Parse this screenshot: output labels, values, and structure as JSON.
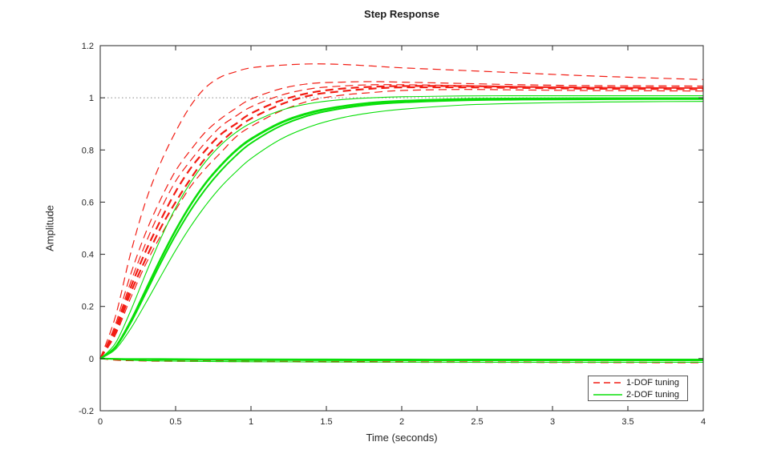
{
  "chart_data": {
    "type": "line",
    "title": "Step Response",
    "xlabel": "Time (seconds)",
    "ylabel": "Amplitude",
    "xlim": [
      0,
      4
    ],
    "ylim": [
      -0.2,
      1.2
    ],
    "xticks": [
      0,
      0.5,
      1,
      1.5,
      2,
      2.5,
      3,
      3.5,
      4
    ],
    "xtick_labels": [
      "0",
      "0.5",
      "1",
      "1.5",
      "2",
      "2.5",
      "3",
      "3.5",
      "4"
    ],
    "yticks": [
      -0.2,
      0,
      0.2,
      0.4,
      0.6,
      0.8,
      1,
      1.2
    ],
    "ytick_labels": [
      "-0.2",
      "0",
      "0.2",
      "0.4",
      "0.6",
      "0.8",
      "1",
      "1.2"
    ],
    "grid": false,
    "axis_color": "#262626",
    "tick_label_color": "#262626",
    "reference_line": {
      "y": 1,
      "style": "dotted",
      "color": "#8a8a8a"
    },
    "legend": {
      "position": "bottom-right",
      "entries": [
        {
          "label": "1-DOF tuning",
          "color": "#f21d14",
          "line_style": "dashed"
        },
        {
          "label": "2-DOF tuning",
          "color": "#0adf0a",
          "line_style": "solid"
        }
      ]
    },
    "time_step": [
      0,
      0.1,
      0.2,
      0.3,
      0.4,
      0.5,
      0.6,
      0.7,
      0.8,
      0.9,
      1,
      1.2,
      1.4,
      1.6,
      1.8,
      2,
      2.4,
      2.8,
      3.2,
      3.6,
      4
    ],
    "time_flat": [
      0,
      0.1,
      0.2,
      0.4,
      0.7,
      1,
      1.5,
      2,
      2.5,
      3,
      3.5,
      4
    ],
    "series": [
      {
        "name": "1dof-step-model1",
        "group": 0,
        "width": 1.2,
        "t": "time_step",
        "y": [
          0,
          0.16,
          0.4,
          0.6,
          0.75,
          0.87,
          0.97,
          1.04,
          1.08,
          1.1,
          1.115,
          1.125,
          1.13,
          1.128,
          1.122,
          1.115,
          1.105,
          1.095,
          1.085,
          1.077,
          1.07
        ]
      },
      {
        "name": "1dof-step-model2",
        "group": 0,
        "width": 1.2,
        "t": "time_step",
        "y": [
          0,
          0.13,
          0.32,
          0.48,
          0.61,
          0.72,
          0.8,
          0.87,
          0.92,
          0.96,
          0.995,
          1.035,
          1.055,
          1.06,
          1.062,
          1.06,
          1.055,
          1.05,
          1.047,
          1.046,
          1.045
        ]
      },
      {
        "name": "1dof-step-model3",
        "group": 0,
        "width": 1.2,
        "t": "time_step",
        "y": [
          0,
          0.12,
          0.29,
          0.44,
          0.57,
          0.68,
          0.76,
          0.83,
          0.89,
          0.93,
          0.965,
          1.01,
          1.035,
          1.045,
          1.05,
          1.05,
          1.047,
          1.043,
          1.04,
          1.039,
          1.038
        ]
      },
      {
        "name": "1dof-step-model4",
        "group": 0,
        "width": 2.2,
        "t": "time_step",
        "y": [
          0,
          0.11,
          0.27,
          0.41,
          0.53,
          0.64,
          0.73,
          0.8,
          0.86,
          0.9,
          0.94,
          0.99,
          1.02,
          1.035,
          1.042,
          1.045,
          1.045,
          1.042,
          1.04,
          1.039,
          1.038
        ]
      },
      {
        "name": "1dof-step-model5",
        "group": 0,
        "width": 2.2,
        "t": "time_step",
        "y": [
          0,
          0.1,
          0.25,
          0.38,
          0.5,
          0.6,
          0.69,
          0.77,
          0.83,
          0.88,
          0.92,
          0.975,
          1.01,
          1.025,
          1.035,
          1.04,
          1.04,
          1.038,
          1.035,
          1.034,
          1.033
        ]
      },
      {
        "name": "1dof-step-model6",
        "group": 0,
        "width": 1.2,
        "t": "time_step",
        "y": [
          0,
          0.09,
          0.23,
          0.36,
          0.47,
          0.57,
          0.66,
          0.73,
          0.79,
          0.85,
          0.89,
          0.95,
          0.99,
          1.01,
          1.02,
          1.028,
          1.032,
          1.03,
          1.028,
          1.027,
          1.026
        ]
      },
      {
        "name": "1dof-flat-model1",
        "group": 0,
        "width": 1.2,
        "t": "time_flat",
        "y": [
          0,
          -0.006,
          -0.008,
          -0.01,
          -0.011,
          -0.012,
          -0.013,
          -0.014,
          -0.0145,
          -0.015,
          -0.0155,
          -0.016
        ]
      },
      {
        "name": "1dof-flat-model2",
        "group": 0,
        "width": 1.2,
        "t": "time_flat",
        "y": [
          0,
          -0.004,
          -0.006,
          -0.008,
          -0.009,
          -0.01,
          -0.011,
          -0.012,
          -0.0125,
          -0.013,
          -0.0135,
          -0.014
        ]
      },
      {
        "name": "2dof-step-model1",
        "group": 1,
        "width": 1.1,
        "t": "time_step",
        "y": [
          0,
          0.058,
          0.181,
          0.323,
          0.459,
          0.578,
          0.676,
          0.756,
          0.819,
          0.867,
          0.903,
          0.952,
          0.979,
          0.993,
          1.0,
          1.004,
          1.007,
          1.008,
          1.008,
          1.008,
          1.008
        ]
      },
      {
        "name": "2dof-step-model2",
        "group": 1,
        "width": 1.1,
        "t": "time_step",
        "y": [
          0,
          0.045,
          0.144,
          0.264,
          0.385,
          0.496,
          0.594,
          0.677,
          0.744,
          0.801,
          0.845,
          0.908,
          0.947,
          0.969,
          0.983,
          0.99,
          0.997,
          0.999,
          1,
          1,
          1
        ]
      },
      {
        "name": "2dof-step-model3",
        "group": 1,
        "width": 2.4,
        "t": "time_step",
        "y": [
          0,
          0.044,
          0.142,
          0.261,
          0.381,
          0.492,
          0.59,
          0.673,
          0.74,
          0.797,
          0.841,
          0.904,
          0.943,
          0.966,
          0.98,
          0.987,
          0.994,
          0.996,
          0.997,
          0.998,
          0.998
        ]
      },
      {
        "name": "2dof-step-model4",
        "group": 1,
        "width": 2.0,
        "t": "time_step",
        "y": [
          0,
          0.042,
          0.135,
          0.249,
          0.365,
          0.473,
          0.569,
          0.651,
          0.72,
          0.778,
          0.826,
          0.893,
          0.935,
          0.959,
          0.974,
          0.982,
          0.99,
          0.993,
          0.994,
          0.995,
          0.995
        ]
      },
      {
        "name": "2dof-step-model5",
        "group": 1,
        "width": 1.1,
        "t": "time_step",
        "y": [
          0,
          0.035,
          0.113,
          0.211,
          0.314,
          0.415,
          0.507,
          0.588,
          0.658,
          0.716,
          0.767,
          0.842,
          0.891,
          0.923,
          0.943,
          0.956,
          0.972,
          0.979,
          0.983,
          0.985,
          0.986
        ]
      },
      {
        "name": "2dof-flat-model1",
        "group": 1,
        "width": 2.2,
        "t": "time_flat",
        "y": [
          0,
          -0.001,
          -0.002,
          -0.002,
          -0.003,
          -0.003,
          -0.0035,
          -0.004,
          -0.004,
          -0.004,
          -0.004,
          -0.004
        ]
      },
      {
        "name": "2dof-flat-model2",
        "group": 1,
        "width": 1.1,
        "t": "time_flat",
        "y": [
          0,
          -0.002,
          -0.003,
          -0.005,
          -0.006,
          -0.007,
          -0.0075,
          -0.008,
          -0.008,
          -0.008,
          -0.008,
          -0.008
        ]
      },
      {
        "name": "2dof-flat-model3",
        "group": 1,
        "width": 1.1,
        "t": "time_flat",
        "y": [
          0,
          -0.003,
          -0.006,
          -0.009,
          -0.011,
          -0.012,
          -0.013,
          -0.0135,
          -0.014,
          -0.014,
          -0.014,
          -0.014
        ]
      }
    ]
  }
}
